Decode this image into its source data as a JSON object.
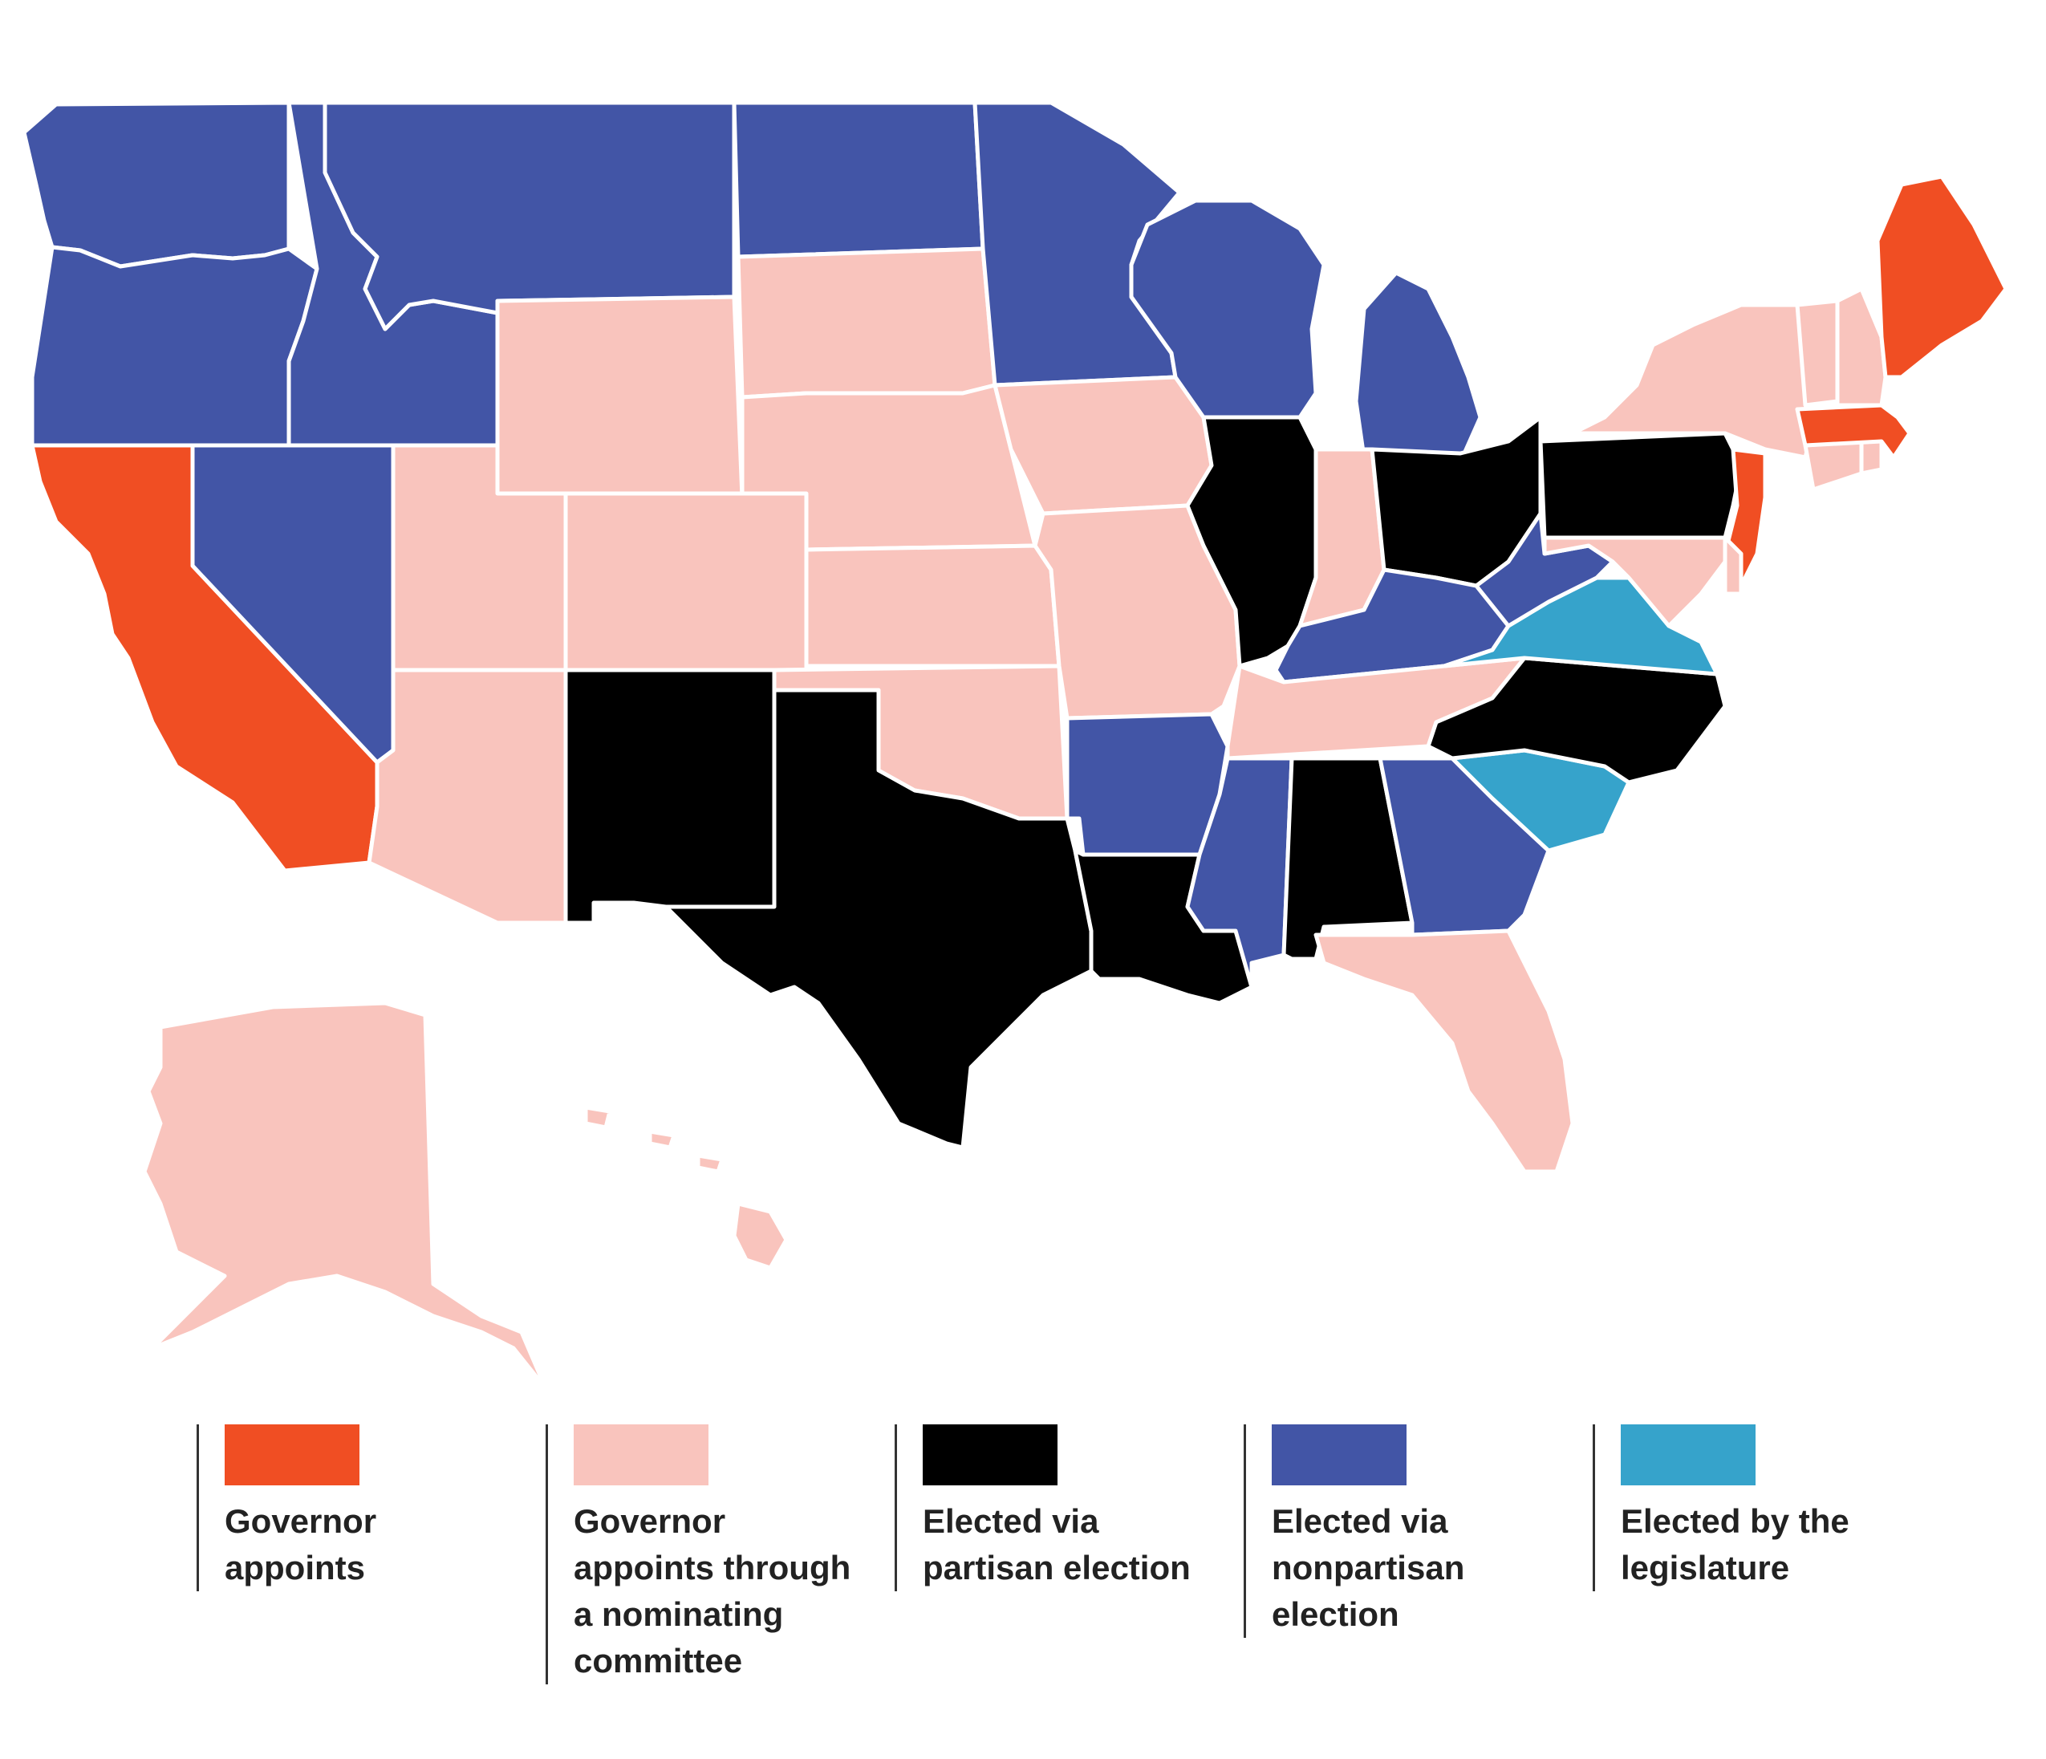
{
  "categories": {
    "gov_appoints": {
      "label": "Governor\nappoints",
      "color": "#F04E23"
    },
    "gov_nominating": {
      "label": "Governor\nappoints through\na nominating\ncommittee",
      "color": "#F9C4BD"
    },
    "partisan": {
      "label": "Elected via\npartisan election",
      "color": "#000000"
    },
    "nonpartisan": {
      "label": "Elected via\nnonpartisan\nelection",
      "color": "#4255A6"
    },
    "legislature": {
      "label": "Elected by the\nlegislature",
      "color": "#36A3CB"
    }
  },
  "legend_order": [
    "gov_appoints",
    "gov_nominating",
    "partisan",
    "nonpartisan",
    "legislature"
  ],
  "states": [
    {
      "name": "Washington",
      "category": "nonpartisan"
    },
    {
      "name": "Oregon",
      "category": "nonpartisan"
    },
    {
      "name": "California",
      "category": "gov_appoints"
    },
    {
      "name": "Nevada",
      "category": "nonpartisan"
    },
    {
      "name": "Idaho",
      "category": "nonpartisan"
    },
    {
      "name": "Montana",
      "category": "nonpartisan"
    },
    {
      "name": "Wyoming",
      "category": "gov_nominating"
    },
    {
      "name": "Utah",
      "category": "gov_nominating"
    },
    {
      "name": "Arizona",
      "category": "gov_nominating"
    },
    {
      "name": "Colorado",
      "category": "gov_nominating"
    },
    {
      "name": "New Mexico",
      "category": "partisan"
    },
    {
      "name": "North Dakota",
      "category": "nonpartisan"
    },
    {
      "name": "South Dakota",
      "category": "gov_nominating"
    },
    {
      "name": "Nebraska",
      "category": "gov_nominating"
    },
    {
      "name": "Kansas",
      "category": "gov_nominating"
    },
    {
      "name": "Oklahoma",
      "category": "gov_nominating"
    },
    {
      "name": "Texas",
      "category": "partisan"
    },
    {
      "name": "Minnesota",
      "category": "nonpartisan"
    },
    {
      "name": "Iowa",
      "category": "gov_nominating"
    },
    {
      "name": "Missouri",
      "category": "gov_nominating"
    },
    {
      "name": "Arkansas",
      "category": "nonpartisan"
    },
    {
      "name": "Louisiana",
      "category": "partisan"
    },
    {
      "name": "Wisconsin",
      "category": "nonpartisan"
    },
    {
      "name": "Illinois",
      "category": "partisan"
    },
    {
      "name": "Michigan",
      "category": "nonpartisan"
    },
    {
      "name": "Indiana",
      "category": "gov_nominating"
    },
    {
      "name": "Ohio",
      "category": "partisan"
    },
    {
      "name": "Kentucky",
      "category": "nonpartisan"
    },
    {
      "name": "Tennessee",
      "category": "gov_nominating"
    },
    {
      "name": "Mississippi",
      "category": "nonpartisan"
    },
    {
      "name": "Alabama",
      "category": "partisan"
    },
    {
      "name": "Georgia",
      "category": "nonpartisan"
    },
    {
      "name": "Florida",
      "category": "gov_nominating"
    },
    {
      "name": "South Carolina",
      "category": "legislature"
    },
    {
      "name": "North Carolina",
      "category": "partisan"
    },
    {
      "name": "Virginia",
      "category": "legislature"
    },
    {
      "name": "West Virginia",
      "category": "nonpartisan"
    },
    {
      "name": "Pennsylvania",
      "category": "partisan"
    },
    {
      "name": "New York",
      "category": "gov_nominating"
    },
    {
      "name": "New Jersey",
      "category": "gov_appoints"
    },
    {
      "name": "Maryland",
      "category": "gov_nominating"
    },
    {
      "name": "Delaware",
      "category": "gov_nominating"
    },
    {
      "name": "Connecticut",
      "category": "gov_nominating"
    },
    {
      "name": "Rhode Island",
      "category": "gov_nominating"
    },
    {
      "name": "Massachusetts",
      "category": "gov_appoints"
    },
    {
      "name": "Vermont",
      "category": "gov_nominating"
    },
    {
      "name": "New Hampshire",
      "category": "gov_nominating"
    },
    {
      "name": "Maine",
      "category": "gov_appoints"
    },
    {
      "name": "Alaska",
      "category": "gov_nominating"
    },
    {
      "name": "Hawaii",
      "category": "gov_nominating"
    }
  ]
}
